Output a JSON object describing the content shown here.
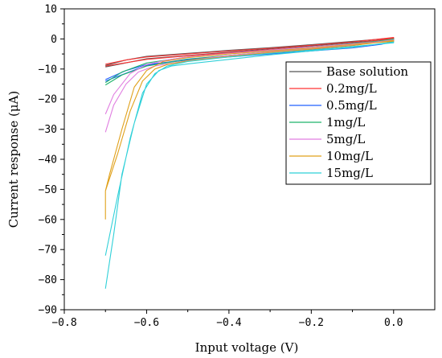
{
  "chart_data": {
    "type": "line",
    "title": "",
    "xlabel": "Input voltage (V)",
    "ylabel": "Current response (μA)",
    "xlim": [
      -0.8,
      0.1
    ],
    "ylim": [
      -90,
      10
    ],
    "x_ticks": [
      -0.8,
      -0.6,
      -0.4,
      -0.2,
      0.0
    ],
    "x_tick_labels": [
      "−0.8",
      "−0.6",
      "−0.4",
      "−0.2",
      "0.0"
    ],
    "y_ticks": [
      10,
      0,
      -10,
      -20,
      -30,
      -40,
      -50,
      -60,
      -70,
      -80,
      -90
    ],
    "y_tick_labels": [
      "10",
      "0",
      "−10",
      "−20",
      "−30",
      "−40",
      "−50",
      "−60",
      "−70",
      "−80",
      "−90"
    ],
    "grid": false,
    "legend_position": "top-right",
    "series": [
      {
        "name": "Base solution",
        "color": "#555555",
        "values": [
          [
            -0.7,
            -8.8
          ],
          [
            -0.65,
            -7.0
          ],
          [
            -0.6,
            -5.8
          ],
          [
            -0.5,
            -4.8
          ],
          [
            -0.4,
            -3.8
          ],
          [
            -0.3,
            -2.9
          ],
          [
            -0.2,
            -1.9
          ],
          [
            -0.1,
            -0.8
          ],
          [
            0.0,
            0.3
          ],
          [
            0.0,
            0.0
          ],
          [
            -0.1,
            -1.2
          ],
          [
            -0.2,
            -2.3
          ],
          [
            -0.3,
            -3.3
          ],
          [
            -0.4,
            -4.4
          ],
          [
            -0.5,
            -5.5
          ],
          [
            -0.6,
            -6.6
          ],
          [
            -0.7,
            -9.3
          ]
        ]
      },
      {
        "name": "0.2mg/L",
        "color": "#ff3333",
        "values": [
          [
            -0.7,
            -8.4
          ],
          [
            -0.65,
            -7.0
          ],
          [
            -0.6,
            -6.0
          ],
          [
            -0.5,
            -5.0
          ],
          [
            -0.4,
            -4.0
          ],
          [
            -0.3,
            -3.1
          ],
          [
            -0.2,
            -2.1
          ],
          [
            -0.1,
            -1.0
          ],
          [
            0.0,
            0.5
          ],
          [
            0.0,
            0.2
          ],
          [
            -0.1,
            -1.5
          ],
          [
            -0.2,
            -2.6
          ],
          [
            -0.3,
            -3.6
          ],
          [
            -0.4,
            -4.6
          ],
          [
            -0.5,
            -5.6
          ],
          [
            -0.6,
            -6.8
          ],
          [
            -0.7,
            -9.0
          ]
        ]
      },
      {
        "name": "0.5mg/L",
        "color": "#2060ff",
        "values": [
          [
            -0.7,
            -13.5
          ],
          [
            -0.65,
            -10.5
          ],
          [
            -0.6,
            -8.5
          ],
          [
            -0.5,
            -7.0
          ],
          [
            -0.4,
            -6.0
          ],
          [
            -0.3,
            -5.0
          ],
          [
            -0.2,
            -4.0
          ],
          [
            -0.1,
            -3.0
          ],
          [
            -0.03,
            -1.8
          ],
          [
            0.0,
            -0.8
          ],
          [
            0.0,
            -0.3
          ],
          [
            -0.1,
            -2.2
          ],
          [
            -0.2,
            -3.5
          ],
          [
            -0.3,
            -4.5
          ],
          [
            -0.4,
            -5.5
          ],
          [
            -0.5,
            -6.7
          ],
          [
            -0.6,
            -8.8
          ],
          [
            -0.7,
            -14.0
          ]
        ]
      },
      {
        "name": "1mg/L",
        "color": "#1fb36a",
        "values": [
          [
            -0.7,
            -15.3
          ],
          [
            -0.66,
            -12.0
          ],
          [
            -0.6,
            -9.0
          ],
          [
            -0.5,
            -6.8
          ],
          [
            -0.4,
            -5.5
          ],
          [
            -0.3,
            -4.3
          ],
          [
            -0.2,
            -3.2
          ],
          [
            -0.1,
            -2.0
          ],
          [
            0.0,
            0.0
          ],
          [
            0.0,
            -0.3
          ],
          [
            -0.1,
            -1.5
          ],
          [
            -0.2,
            -2.7
          ],
          [
            -0.3,
            -3.8
          ],
          [
            -0.4,
            -4.9
          ],
          [
            -0.5,
            -6.0
          ],
          [
            -0.6,
            -8.0
          ],
          [
            -0.66,
            -11.0
          ],
          [
            -0.7,
            -14.5
          ]
        ]
      },
      {
        "name": "5mg/L",
        "color": "#e07ee0",
        "values": [
          [
            -0.7,
            -31.0
          ],
          [
            -0.68,
            -22.0
          ],
          [
            -0.65,
            -15.0
          ],
          [
            -0.62,
            -11.0
          ],
          [
            -0.58,
            -9.0
          ],
          [
            -0.5,
            -7.2
          ],
          [
            -0.4,
            -5.5
          ],
          [
            -0.3,
            -4.3
          ],
          [
            -0.2,
            -3.2
          ],
          [
            -0.1,
            -2.0
          ],
          [
            0.0,
            -0.3
          ],
          [
            0.0,
            -0.6
          ],
          [
            -0.1,
            -1.6
          ],
          [
            -0.2,
            -2.7
          ],
          [
            -0.3,
            -3.7
          ],
          [
            -0.4,
            -4.8
          ],
          [
            -0.5,
            -6.0
          ],
          [
            -0.55,
            -7.0
          ],
          [
            -0.6,
            -8.5
          ],
          [
            -0.64,
            -11.5
          ],
          [
            -0.68,
            -18.5
          ],
          [
            -0.7,
            -25.0
          ]
        ]
      },
      {
        "name": "10mg/L",
        "color": "#e0a11b",
        "values": [
          [
            -0.7,
            -60.0
          ],
          [
            -0.7,
            -50.5
          ],
          [
            -0.67,
            -38.0
          ],
          [
            -0.64,
            -24.0
          ],
          [
            -0.61,
            -14.0
          ],
          [
            -0.58,
            -10.0
          ],
          [
            -0.55,
            -8.5
          ],
          [
            -0.5,
            -7.3
          ],
          [
            -0.4,
            -5.8
          ],
          [
            -0.3,
            -4.5
          ],
          [
            -0.2,
            -3.4
          ],
          [
            -0.1,
            -2.2
          ],
          [
            0.0,
            -0.5
          ],
          [
            0.0,
            -0.8
          ],
          [
            -0.1,
            -1.8
          ],
          [
            -0.2,
            -3.0
          ],
          [
            -0.3,
            -4.0
          ],
          [
            -0.4,
            -5.0
          ],
          [
            -0.5,
            -6.2
          ],
          [
            -0.56,
            -7.5
          ],
          [
            -0.6,
            -10.5
          ],
          [
            -0.63,
            -16.0
          ],
          [
            -0.66,
            -30.0
          ],
          [
            -0.69,
            -45.0
          ],
          [
            -0.7,
            -50.5
          ]
        ]
      },
      {
        "name": "15mg/L",
        "color": "#2fd0d8",
        "values": [
          [
            -0.7,
            -83.0
          ],
          [
            -0.68,
            -65.0
          ],
          [
            -0.66,
            -45.0
          ],
          [
            -0.63,
            -28.0
          ],
          [
            -0.6,
            -15.0
          ],
          [
            -0.57,
            -10.5
          ],
          [
            -0.54,
            -9.0
          ],
          [
            -0.5,
            -8.3
          ],
          [
            -0.4,
            -6.8
          ],
          [
            -0.3,
            -5.3
          ],
          [
            -0.2,
            -4.0
          ],
          [
            -0.1,
            -2.8
          ],
          [
            0.0,
            -1.0
          ],
          [
            0.0,
            -1.3
          ],
          [
            -0.1,
            -2.5
          ],
          [
            -0.2,
            -3.7
          ],
          [
            -0.3,
            -4.8
          ],
          [
            -0.4,
            -6.0
          ],
          [
            -0.5,
            -7.5
          ],
          [
            -0.55,
            -9.0
          ],
          [
            -0.58,
            -11.5
          ],
          [
            -0.61,
            -18.0
          ],
          [
            -0.64,
            -33.0
          ],
          [
            -0.67,
            -52.0
          ],
          [
            -0.7,
            -72.0
          ]
        ]
      }
    ]
  }
}
